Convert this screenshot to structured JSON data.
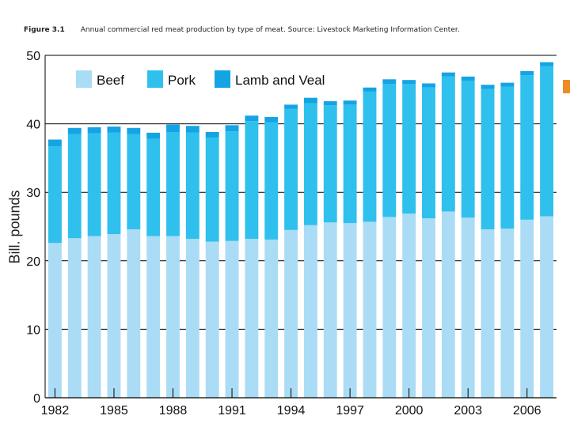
{
  "caption": {
    "figure": "Figure 3.1",
    "text": "Annual commercial red meat production by type of meat. Source: Livestock Marketing Information Center."
  },
  "colors": {
    "beef": "#abdcf5",
    "pork": "#2fc0ed",
    "lamb_veal": "#14a4e3",
    "grid": "#000000",
    "accent_marker": "#f08a24"
  },
  "chart_data": {
    "type": "bar",
    "stacked": true,
    "title": "",
    "xlabel": "",
    "ylabel": "Bill. pounds",
    "ylim": [
      0,
      50
    ],
    "yticks": [
      0,
      10,
      20,
      30,
      40,
      50
    ],
    "x": [
      1982,
      1983,
      1984,
      1985,
      1986,
      1987,
      1988,
      1989,
      1990,
      1991,
      1992,
      1993,
      1994,
      1995,
      1996,
      1997,
      1998,
      1999,
      2000,
      2001,
      2002,
      2003,
      2004,
      2005,
      2006,
      2007
    ],
    "xtick_labels": [
      "1982",
      "1985",
      "1988",
      "1991",
      "1994",
      "1997",
      "2000",
      "2003",
      "2006"
    ],
    "grid": true,
    "legend_position": "top-left",
    "series": [
      {
        "name": "Beef",
        "values": [
          22.6,
          23.3,
          23.6,
          23.9,
          24.6,
          23.6,
          23.6,
          23.2,
          22.8,
          22.9,
          23.2,
          23.1,
          24.5,
          25.2,
          25.6,
          25.5,
          25.7,
          26.4,
          26.9,
          26.2,
          27.2,
          26.3,
          24.6,
          24.7,
          26.0,
          26.5
        ]
      },
      {
        "name": "Pork",
        "values": [
          14.1,
          15.2,
          15.0,
          14.8,
          13.9,
          14.2,
          15.2,
          15.5,
          15.2,
          16.0,
          17.2,
          17.1,
          17.7,
          17.8,
          17.1,
          17.3,
          19.0,
          19.4,
          18.9,
          19.1,
          19.7,
          20.0,
          20.5,
          20.7,
          21.1,
          21.9
        ]
      },
      {
        "name": "Lamb and Veal",
        "values": [
          1.0,
          0.9,
          0.9,
          0.9,
          0.9,
          0.9,
          1.1,
          1.0,
          0.8,
          0.9,
          0.8,
          0.8,
          0.6,
          0.8,
          0.6,
          0.6,
          0.6,
          0.7,
          0.6,
          0.6,
          0.6,
          0.6,
          0.6,
          0.6,
          0.6,
          0.6
        ]
      }
    ]
  }
}
